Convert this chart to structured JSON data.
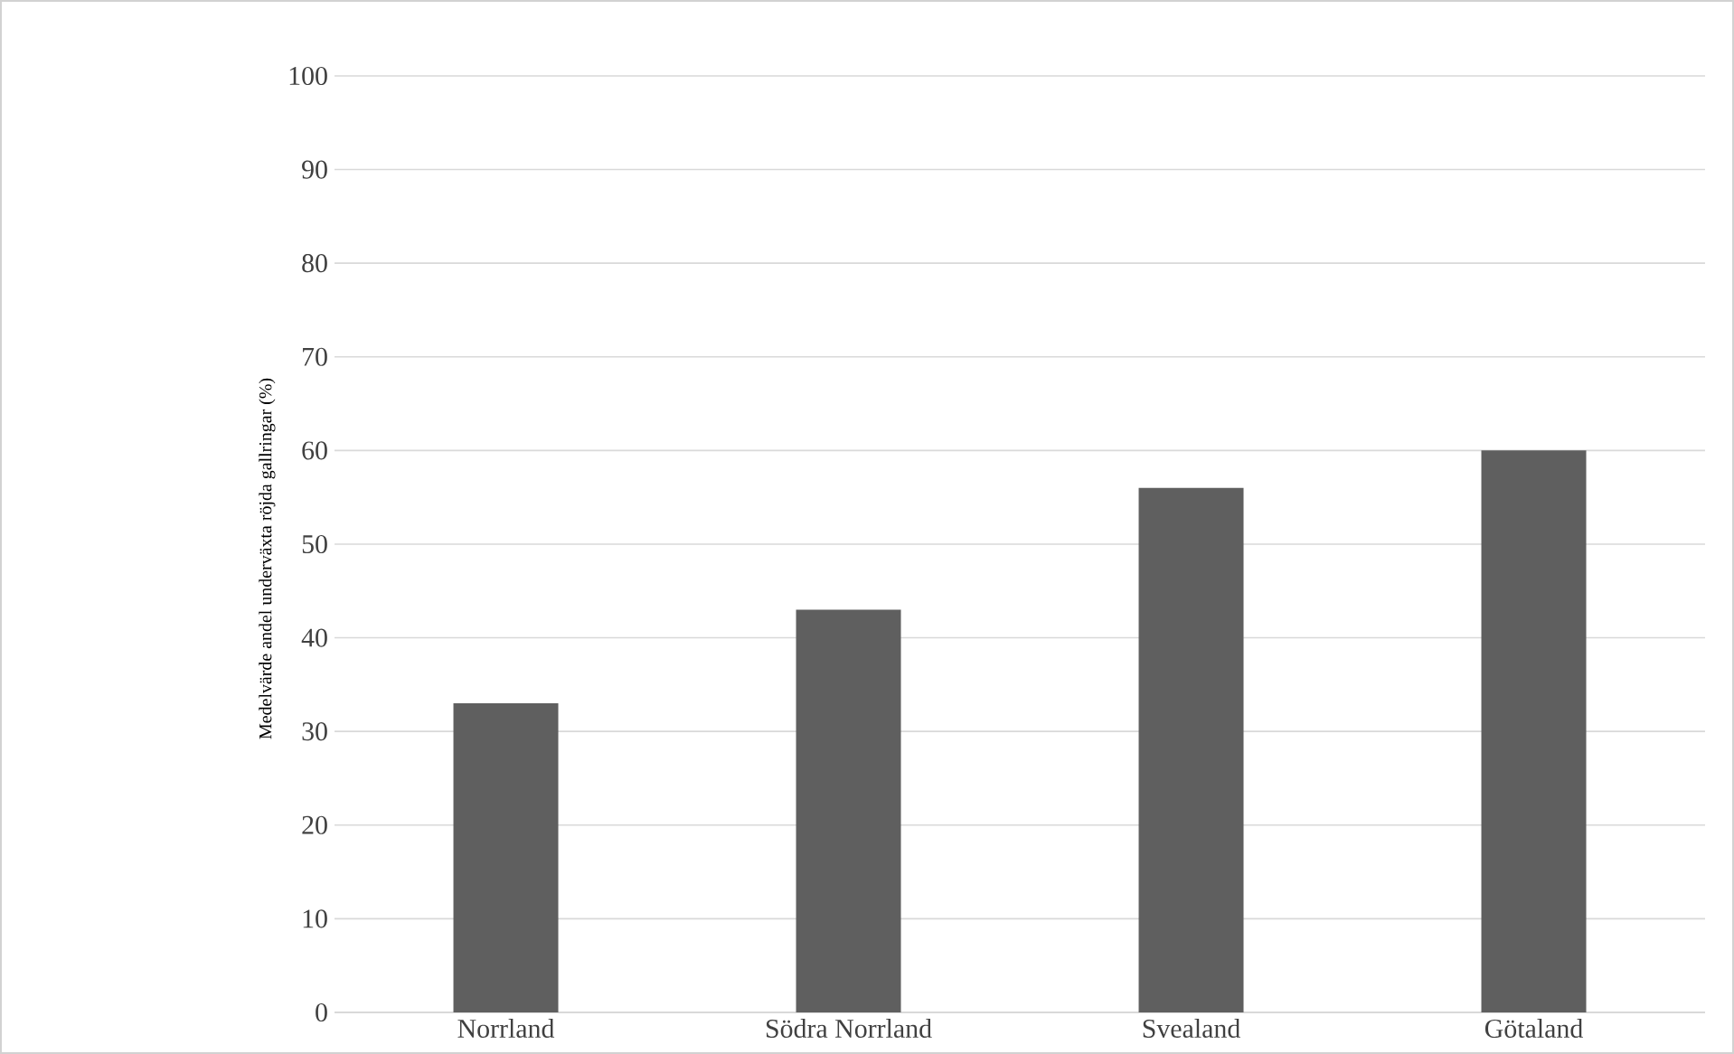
{
  "chart_data": {
    "type": "bar",
    "ylabel": "Medelvärde andel underväxta röjda gallringar (%)",
    "categories": [
      "Norrland",
      "Södra Norrland",
      "Svealand",
      "Götaland"
    ],
    "values": [
      33,
      43,
      56,
      60
    ],
    "color": "#5f5f5f",
    "ylim": [
      0,
      100
    ],
    "yticks": [
      0,
      10,
      20,
      30,
      40,
      50,
      60,
      70,
      80,
      90,
      100
    ],
    "grid": "y",
    "legend": false
  }
}
